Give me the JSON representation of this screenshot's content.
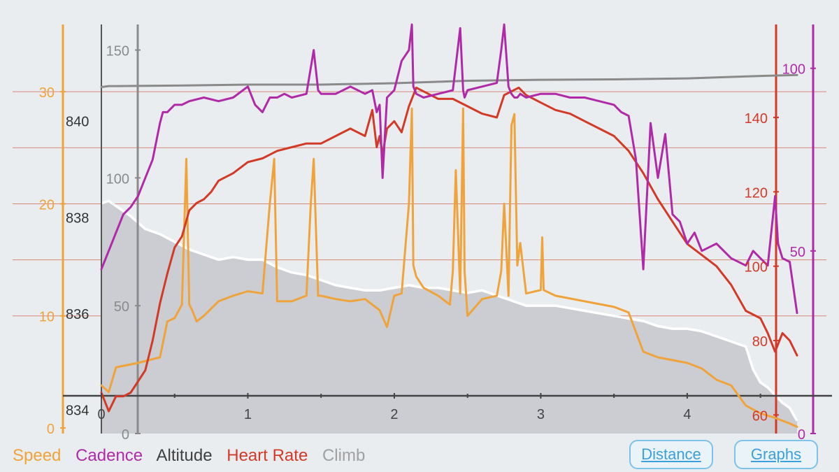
{
  "chart_data": {
    "type": "line",
    "x": {
      "label": "Distance",
      "range": [
        0,
        4.75
      ],
      "ticks": [
        0,
        1,
        2,
        3,
        4
      ],
      "tick_labels": [
        "0",
        "1",
        "2",
        "3",
        "4"
      ]
    },
    "axes": {
      "speed": {
        "range": [
          -0.5,
          36
        ],
        "ticks": [
          0,
          10,
          20,
          30
        ],
        "tick_labels": [
          "0",
          "10",
          "20",
          "30"
        ],
        "color": "#f0a33a"
      },
      "altitude": {
        "range": [
          833.5,
          842
        ],
        "ticks": [
          834,
          836,
          838,
          840
        ],
        "tick_labels": [
          "834",
          "836",
          "838",
          "840"
        ],
        "color": "#333333"
      },
      "climb": {
        "range": [
          0,
          160
        ],
        "ticks": [
          0,
          50,
          100,
          150
        ],
        "tick_labels": [
          "0",
          "50",
          "100",
          "150"
        ],
        "color": "#8a8a8a"
      },
      "heart_rate": {
        "range": [
          55,
          165
        ],
        "ticks": [
          60,
          80,
          100,
          120,
          140
        ],
        "tick_labels": [
          "60",
          "80",
          "100",
          "120",
          "140"
        ],
        "color": "#d23a27"
      },
      "cadence": {
        "range": [
          0,
          112
        ],
        "ticks": [
          0,
          50,
          100
        ],
        "tick_labels": [
          "0",
          "50",
          "100"
        ],
        "color": "#b02aa8"
      }
    },
    "series": [
      {
        "name": "Speed",
        "key": "speed",
        "axis": "speed",
        "color": "#f0a33a",
        "x": [
          0,
          0.05,
          0.1,
          0.25,
          0.4,
          0.45,
          0.5,
          0.55,
          0.58,
          0.6,
          0.62,
          0.65,
          0.7,
          0.8,
          0.9,
          1,
          1.1,
          1.15,
          1.18,
          1.2,
          1.25,
          1.3,
          1.4,
          1.43,
          1.45,
          1.48,
          1.5,
          1.6,
          1.7,
          1.8,
          1.9,
          1.95,
          2,
          2.05,
          2.1,
          2.12,
          2.13,
          2.15,
          2.2,
          2.3,
          2.38,
          2.4,
          2.42,
          2.45,
          2.47,
          2.48,
          2.5,
          2.6,
          2.7,
          2.73,
          2.75,
          2.78,
          2.8,
          2.82,
          2.84,
          2.86,
          2.9,
          3,
          3.01,
          3.02,
          3.1,
          3.3,
          3.5,
          3.6,
          3.7,
          3.8,
          4,
          4.1,
          4.2,
          4.3,
          4.4,
          4.5,
          4.6,
          4.7,
          4.75
        ],
        "values": [
          3.8,
          3.2,
          5.4,
          5.8,
          6.3,
          9.5,
          9.8,
          11.0,
          24.0,
          11.0,
          10.5,
          9.5,
          10.0,
          11.3,
          11.8,
          12.2,
          12.0,
          20.0,
          24.0,
          11.3,
          11.3,
          11.3,
          11.8,
          20.0,
          24.0,
          11.8,
          11.8,
          11.5,
          11.3,
          11.5,
          10.5,
          9.0,
          11.8,
          12.0,
          20.0,
          28.5,
          14.5,
          13.5,
          12.5,
          11.8,
          11.0,
          14.0,
          23.0,
          12.0,
          28.5,
          14.0,
          10.0,
          11.5,
          11.8,
          14.0,
          20.0,
          11.8,
          27.0,
          28.0,
          14.5,
          16.5,
          12.0,
          12.3,
          17.0,
          12.3,
          11.8,
          11.3,
          10.8,
          10.3,
          6.8,
          6.3,
          5.8,
          5.3,
          4.3,
          3.8,
          2.0,
          1.3,
          0.9,
          0.4,
          0.1
        ]
      },
      {
        "name": "Cadence",
        "key": "cadence",
        "axis": "cadence",
        "color": "#b02aa8",
        "x": [
          0,
          0.05,
          0.1,
          0.15,
          0.2,
          0.25,
          0.3,
          0.35,
          0.4,
          0.42,
          0.45,
          0.5,
          0.55,
          0.6,
          0.7,
          0.8,
          0.9,
          1,
          1.05,
          1.1,
          1.15,
          1.2,
          1.25,
          1.3,
          1.4,
          1.45,
          1.48,
          1.5,
          1.6,
          1.7,
          1.8,
          1.85,
          1.88,
          1.9,
          1.92,
          1.95,
          2,
          2.05,
          2.1,
          2.12,
          2.13,
          2.15,
          2.2,
          2.3,
          2.4,
          2.45,
          2.47,
          2.48,
          2.5,
          2.6,
          2.7,
          2.73,
          2.75,
          2.78,
          2.8,
          2.82,
          2.84,
          2.86,
          2.9,
          3,
          3.1,
          3.2,
          3.3,
          3.4,
          3.5,
          3.55,
          3.6,
          3.65,
          3.7,
          3.75,
          3.8,
          3.85,
          3.9,
          3.95,
          4,
          4.05,
          4.1,
          4.2,
          4.3,
          4.4,
          4.45,
          4.5,
          4.55,
          4.6,
          4.62,
          4.65,
          4.7,
          4.75
        ],
        "values": [
          45,
          50,
          55,
          60,
          62,
          65,
          70,
          75,
          85,
          88,
          88,
          90,
          90,
          91,
          92,
          91,
          92,
          95,
          90,
          88,
          92,
          92,
          93,
          92,
          93,
          105,
          94,
          93,
          93,
          95,
          93,
          94,
          88,
          90,
          70,
          92,
          94,
          102,
          105,
          112,
          95,
          93,
          92,
          93,
          94,
          111,
          94,
          92,
          94,
          95,
          96,
          105,
          112,
          95,
          93,
          92,
          92,
          93,
          92,
          93,
          93,
          92,
          92,
          91,
          90,
          88,
          87,
          75,
          45,
          85,
          70,
          82,
          60,
          58,
          52,
          55,
          50,
          52,
          48,
          46,
          50,
          48,
          46,
          65,
          52,
          48,
          47,
          33
        ]
      },
      {
        "name": "Altitude",
        "key": "altitude",
        "axis": "altitude",
        "color": "#8a8a8a",
        "x": [
          0,
          0.05,
          0.1,
          0.5,
          1,
          1.5,
          2,
          2.5,
          3,
          3.5,
          4,
          4.5,
          4.75
        ],
        "values": [
          840.7,
          840.72,
          840.72,
          840.73,
          840.75,
          840.75,
          840.78,
          840.83,
          840.85,
          840.86,
          840.88,
          840.93,
          840.95
        ]
      },
      {
        "name": "Heart Rate",
        "key": "heart_rate",
        "axis": "heart_rate",
        "color": "#d23a27",
        "x": [
          0,
          0.02,
          0.05,
          0.1,
          0.15,
          0.2,
          0.25,
          0.3,
          0.35,
          0.4,
          0.45,
          0.5,
          0.55,
          0.6,
          0.65,
          0.7,
          0.75,
          0.8,
          0.9,
          1,
          1.1,
          1.2,
          1.3,
          1.4,
          1.5,
          1.6,
          1.7,
          1.8,
          1.85,
          1.88,
          1.9,
          1.92,
          1.95,
          2,
          2.05,
          2.1,
          2.15,
          2.2,
          2.3,
          2.4,
          2.5,
          2.6,
          2.7,
          2.75,
          2.8,
          2.85,
          2.9,
          3,
          3.1,
          3.2,
          3.3,
          3.4,
          3.5,
          3.6,
          3.7,
          3.8,
          3.9,
          4,
          4.1,
          4.2,
          4.3,
          4.4,
          4.5,
          4.55,
          4.6,
          4.65,
          4.7,
          4.75
        ],
        "values": [
          66,
          64,
          61,
          65,
          65,
          66,
          69,
          72,
          80,
          90,
          98,
          105,
          108,
          115,
          117,
          118,
          120,
          123,
          125,
          128,
          129,
          131,
          132,
          133,
          133,
          135,
          137,
          135,
          142,
          132,
          135,
          130,
          137,
          139,
          136,
          143,
          148,
          147,
          145,
          145,
          143,
          141,
          140,
          146,
          147,
          148,
          146,
          144,
          142,
          141,
          139,
          137,
          135,
          131,
          125,
          118,
          112,
          106,
          103,
          100,
          95,
          88,
          86,
          82,
          77,
          82,
          80,
          76
        ]
      },
      {
        "name": "Climb",
        "key": "climb",
        "axis": "climb",
        "color": "#ffffff",
        "fill": "#cbcdd3",
        "x": [
          0,
          0.05,
          0.1,
          0.2,
          0.3,
          0.4,
          0.5,
          0.6,
          0.7,
          0.8,
          0.9,
          1,
          1.1,
          1.2,
          1.3,
          1.4,
          1.5,
          1.6,
          1.7,
          1.8,
          1.9,
          2,
          2.1,
          2.2,
          2.3,
          2.4,
          2.5,
          2.6,
          2.7,
          2.8,
          2.9,
          3,
          3.1,
          3.2,
          3.3,
          3.4,
          3.5,
          3.6,
          3.7,
          3.8,
          3.9,
          4,
          4.1,
          4.2,
          4.3,
          4.4,
          4.45,
          4.5,
          4.55,
          4.6,
          4.65,
          4.7,
          4.75
        ],
        "values": [
          90,
          91,
          89,
          85,
          80,
          78,
          75,
          72,
          70,
          68,
          69,
          68,
          68,
          65,
          63,
          62,
          60,
          58,
          57,
          56,
          56,
          57,
          58,
          57,
          57,
          56,
          55,
          56,
          54,
          52,
          50,
          50,
          50,
          49,
          48,
          47,
          46,
          45,
          44,
          42,
          41,
          41,
          40,
          38,
          36,
          34,
          25,
          20,
          18,
          15,
          12,
          10,
          5
        ]
      }
    ]
  },
  "legend": {
    "speed": "Speed",
    "cadence": "Cadence",
    "altitude": "Altitude",
    "heart_rate": "Heart Rate",
    "climb": "Climb"
  },
  "buttons": {
    "distance": "Distance",
    "graphs": "Graphs"
  },
  "colors": {
    "speed": "#f0a33a",
    "cadence": "#b02aa8",
    "altitude": "#404040",
    "heart_rate": "#d23a27",
    "climb": "#a0a0a0",
    "background": "#e9edf0",
    "button_border": "#7cc2ea",
    "button_text": "#3b9fdc"
  }
}
